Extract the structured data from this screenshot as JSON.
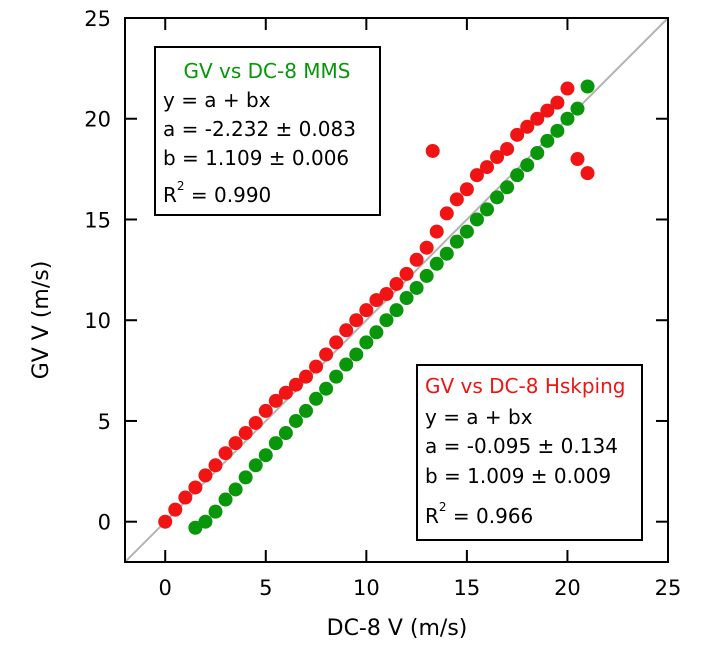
{
  "chart_data": {
    "type": "scatter",
    "xlabel": "DC-8 V (m/s)",
    "ylabel": "GV V (m/s)",
    "xlim": [
      -2,
      25
    ],
    "ylim": [
      -2,
      25
    ],
    "x_ticks": [
      "0",
      "5",
      "10",
      "15",
      "20",
      "25"
    ],
    "y_ticks": [
      "0",
      "5",
      "10",
      "15",
      "20",
      "25"
    ],
    "grid": false,
    "one_to_one_line": true,
    "colors": {
      "mms": "#0a960a",
      "hskping": "#f01414",
      "one_to_one": "#b4b4b4"
    },
    "series": [
      {
        "name": "GV vs DC-8 MMS",
        "color": "#0a960a",
        "x": [
          1.5,
          2.0,
          2.5,
          3.0,
          3.5,
          4.0,
          4.5,
          5.0,
          5.5,
          6.0,
          6.5,
          7.0,
          7.5,
          8.0,
          8.5,
          9.0,
          9.5,
          10.0,
          10.5,
          11.0,
          11.5,
          12.0,
          12.5,
          13.0,
          13.5,
          14.0,
          14.5,
          15.0,
          15.5,
          16.0,
          16.5,
          17.0,
          17.5,
          18.0,
          18.5,
          19.0,
          19.5,
          20.0,
          20.5,
          21.0
        ],
        "y": [
          -0.3,
          0.0,
          0.5,
          1.1,
          1.6,
          2.2,
          2.8,
          3.3,
          3.9,
          4.4,
          5.0,
          5.5,
          6.1,
          6.6,
          7.2,
          7.8,
          8.3,
          8.9,
          9.4,
          10.0,
          10.5,
          11.1,
          11.6,
          12.2,
          12.8,
          13.3,
          13.9,
          14.4,
          15.0,
          15.5,
          16.1,
          16.6,
          17.2,
          17.7,
          18.3,
          18.9,
          19.4,
          20.0,
          20.5,
          21.6
        ]
      },
      {
        "name": "GV vs DC-8 Hskping",
        "color": "#f01414",
        "x": [
          0.0,
          0.5,
          1.0,
          1.5,
          2.0,
          2.5,
          3.0,
          3.5,
          4.0,
          4.5,
          5.0,
          5.5,
          6.0,
          6.5,
          7.0,
          7.5,
          8.0,
          8.5,
          9.0,
          9.5,
          10.0,
          10.5,
          11.0,
          11.5,
          12.0,
          12.5,
          13.0,
          13.3,
          13.5,
          14.0,
          14.5,
          15.0,
          15.5,
          16.0,
          16.5,
          17.0,
          17.5,
          18.0,
          18.5,
          19.0,
          19.5,
          20.0,
          20.5,
          21.0
        ],
        "y": [
          0.0,
          0.6,
          1.2,
          1.7,
          2.3,
          2.8,
          3.4,
          3.9,
          4.4,
          4.9,
          5.5,
          6.0,
          6.4,
          6.8,
          7.2,
          7.7,
          8.3,
          8.9,
          9.5,
          10.0,
          10.5,
          11.0,
          11.3,
          11.8,
          12.3,
          13.0,
          13.6,
          18.4,
          14.4,
          15.3,
          16.0,
          16.5,
          17.2,
          17.6,
          18.1,
          18.5,
          19.2,
          19.6,
          20.0,
          20.4,
          20.8,
          21.5,
          18.0,
          17.3
        ]
      }
    ],
    "stat_boxes": [
      {
        "title": "GV vs DC-8 MMS",
        "color": "#0a960a",
        "eq": "y = a + bx",
        "a": "a = -2.232 ± 0.083",
        "b": "b = 1.109 ± 0.006",
        "r_base": "R",
        "r_sup": "2",
        "r_val": " = 0.990"
      },
      {
        "title": "GV vs DC-8 Hskping",
        "color": "#f01414",
        "eq": "y = a + bx",
        "a": "a = -0.095 ± 0.134",
        "b": "b = 1.009 ± 0.009",
        "r_base": "R",
        "r_sup": "2",
        "r_val": " = 0.966"
      }
    ]
  }
}
